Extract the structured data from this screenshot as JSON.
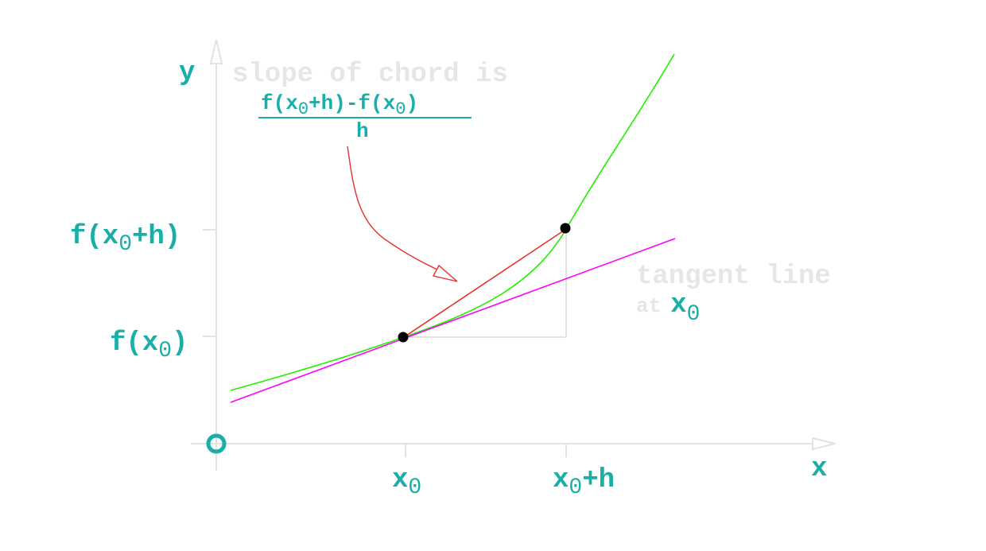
{
  "labels": {
    "y_axis": "y",
    "x_axis": "x",
    "origin": "O",
    "x0": "x",
    "x0_sub": "0",
    "x0h": "x",
    "x0h_sub": "0",
    "x0h_rest": "+h",
    "fx0h_a": "f(x",
    "fx0h_sub": "0",
    "fx0h_b": "+h)",
    "fx0_a": "f(x",
    "fx0_sub": "0",
    "fx0_b": ")",
    "chord_text": "slope of chord is",
    "num_a": "f(x",
    "num_sub1": "0",
    "num_b": "+h)-f(x",
    "num_sub2": "0",
    "num_c": ")",
    "den": "h",
    "tangent_1": "tangent line",
    "tangent_2": "at",
    "tangent_x": "x",
    "tangent_sub": "0"
  },
  "colors": {
    "text": "#1aaea9",
    "faint_text": "#e6e6e6",
    "curve": "#22ee00",
    "tangent": "#ff00ff",
    "chord": "#e8302a",
    "axes": "#e2e2e2",
    "points": "#000000"
  }
}
